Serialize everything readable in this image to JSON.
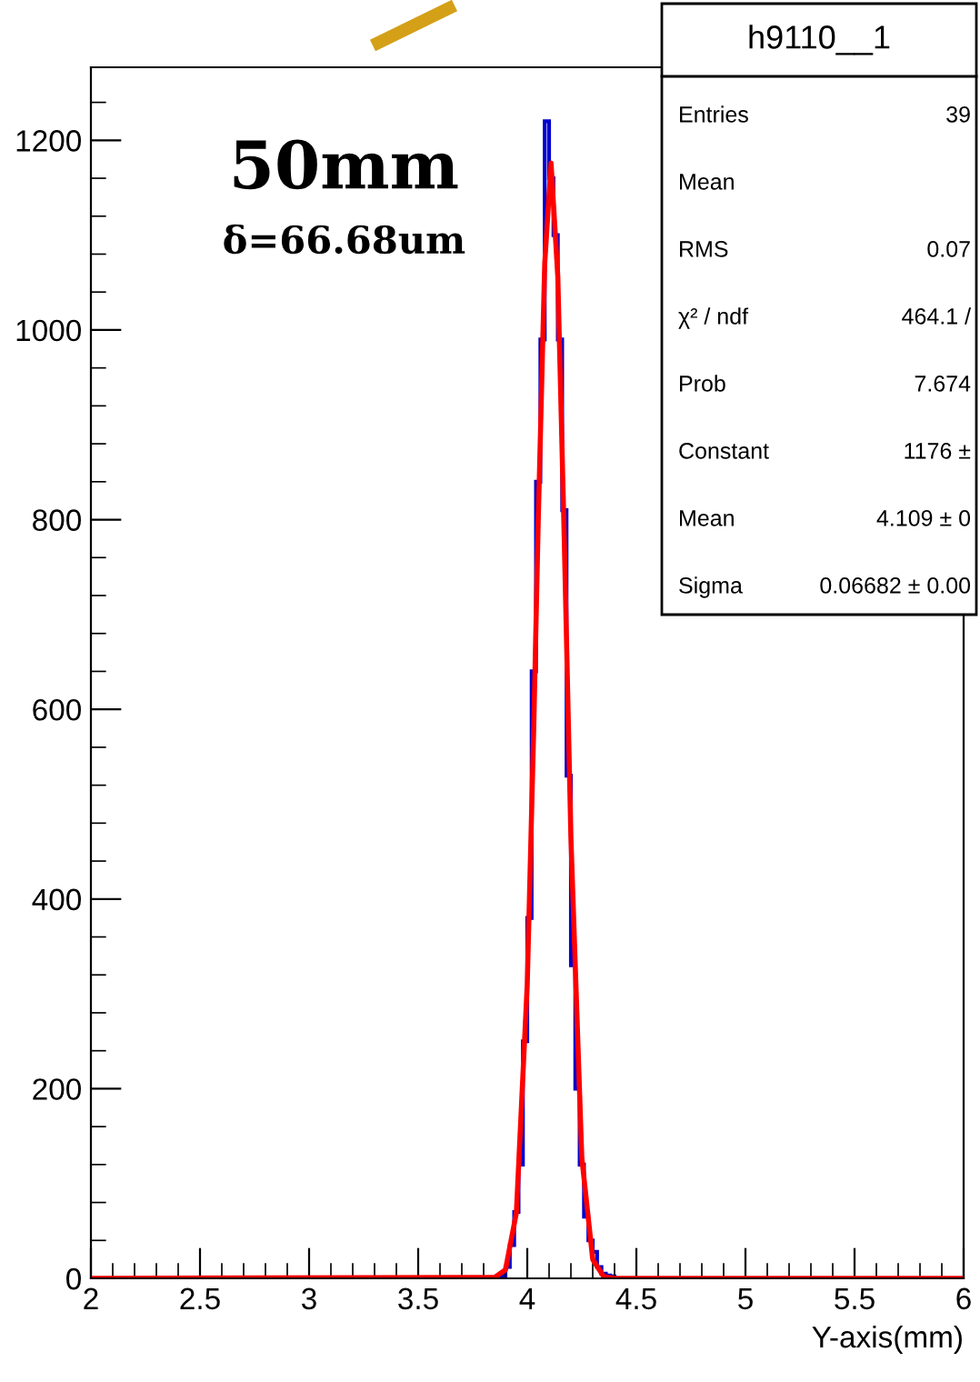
{
  "chart_data": {
    "type": "histogram",
    "xlabel": "Y-axis(mm)",
    "xlim": [
      2,
      6
    ],
    "xticks": [
      2,
      2.5,
      3,
      3.5,
      4,
      4.5,
      5,
      5.5,
      6
    ],
    "ylim": [
      0,
      1277
    ],
    "yticks": [
      0,
      200,
      400,
      600,
      800,
      1000,
      1200
    ],
    "grid": false,
    "legend": false,
    "annotations": [
      "50mm",
      "δ=66.68um",
      "h9110__1",
      "Entries",
      "39",
      "Mean",
      "RMS",
      "0.07",
      "χ² / ndf",
      "464.1 /",
      "Prob",
      "7.674",
      "Constant",
      "1176 ±",
      "Mean",
      "4.109 ± 0",
      "Sigma",
      "0.06682 ± 0.00"
    ],
    "series": [
      {
        "color": "#0000cc",
        "bins": [
          3.88,
          3.9,
          3.92,
          3.94,
          3.96,
          3.98,
          4.0,
          4.02,
          4.04,
          4.06,
          4.08,
          4.1,
          4.12,
          4.14,
          4.16,
          4.18,
          4.2,
          4.22,
          4.24,
          4.26,
          4.28,
          4.3,
          4.32,
          4.34,
          4.36,
          4.38,
          4.4
        ],
        "values": [
          3,
          12,
          35,
          70,
          120,
          250,
          380,
          640,
          840,
          990,
          1220,
          1160,
          1100,
          990,
          810,
          530,
          330,
          200,
          120,
          65,
          40,
          28,
          12,
          5,
          3,
          2
        ]
      },
      {
        "type": "line",
        "color": "#ff0000",
        "x": [
          2,
          3.85,
          3.9,
          3.95,
          4.0,
          4.03,
          4.05,
          4.08,
          4.109,
          4.14,
          4.17,
          4.2,
          4.25,
          4.3,
          4.35,
          4.4,
          6
        ],
        "values": [
          0,
          1,
          9,
          69,
          311,
          584,
          796,
          1070,
          1176,
          1056,
          775,
          465,
          127,
          20,
          2,
          0,
          0
        ]
      }
    ]
  }
}
